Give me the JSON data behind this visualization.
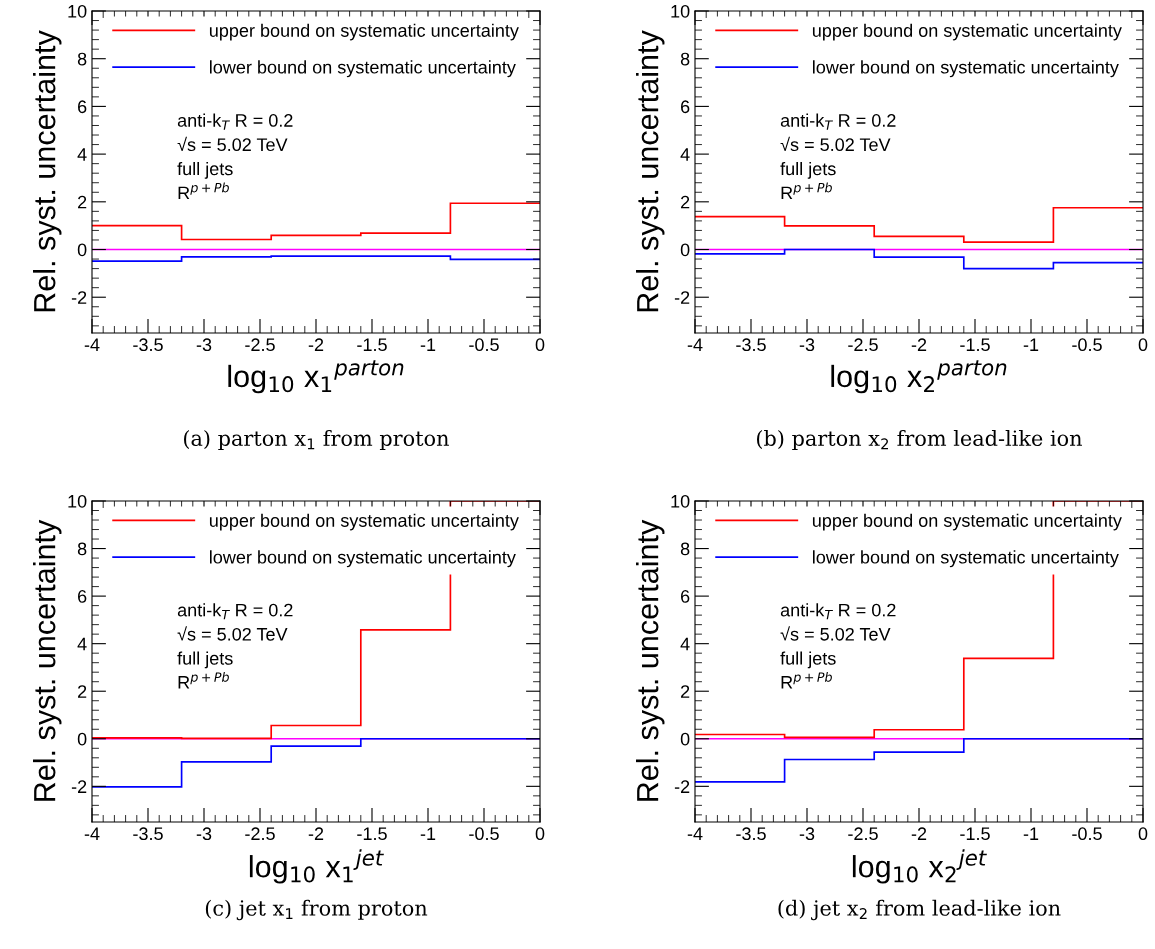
{
  "chart_data": [
    {
      "type": "histogram",
      "title": "(a) parton x$_{1}$ from proton",
      "xlabel": "log$_{10}$ x$_{1}$$^{parton}$",
      "ylabel": "Rel. syst. uncertainty",
      "bins": [
        -4,
        -3.2,
        -2.4,
        -1.6,
        -0.8,
        0
      ],
      "series": [
        {
          "name": "upper bound on systematic uncertainty",
          "color": "#ff0000",
          "values": [
            1.0,
            0.42,
            0.59,
            0.69,
            1.94
          ]
        },
        {
          "name": "lower bound on systematic uncertainty",
          "color": "#0000ff",
          "values": [
            -0.49,
            -0.31,
            -0.28,
            -0.28,
            -0.41
          ]
        }
      ],
      "annotations": [
        "anti-k$_{T}$ R = 0.2",
        "√s = 5.02 TeV",
        "full jets",
        "R$^{p+Pb}$"
      ],
      "ref_lines": [
        {
          "axis": "y",
          "value": 0,
          "color": "#ff00ff"
        }
      ],
      "xlim": [
        -4,
        0
      ],
      "ylim": [
        -3.5,
        10
      ],
      "xticks": [
        -4,
        -3.5,
        -3,
        -2.5,
        -2,
        -1.5,
        -1,
        -0.5,
        0
      ],
      "yticks": [
        -2,
        0,
        2,
        4,
        6,
        8,
        10
      ],
      "legend": "top",
      "grid": false
    },
    {
      "type": "histogram",
      "title": "(b) parton x$_{2}$ from lead-like ion",
      "xlabel": "log$_{10}$ x$_{2}$$^{parton}$",
      "ylabel": "Rel. syst. uncertainty",
      "bins": [
        -4,
        -3.2,
        -2.4,
        -1.6,
        -0.8,
        0
      ],
      "series": [
        {
          "name": "upper bound on systematic uncertainty",
          "color": "#ff0000",
          "values": [
            1.38,
            0.99,
            0.55,
            0.31,
            1.75
          ]
        },
        {
          "name": "lower bound on systematic uncertainty",
          "color": "#0000ff",
          "values": [
            -0.18,
            0,
            -0.32,
            -0.8,
            -0.55
          ]
        }
      ],
      "annotations": [
        "anti-k$_{T}$ R = 0.2",
        "√s = 5.02 TeV",
        "full jets",
        "R$^{p+Pb}$"
      ],
      "ref_lines": [
        {
          "axis": "y",
          "value": 0,
          "color": "#ff00ff"
        }
      ],
      "xlim": [
        -4,
        0
      ],
      "ylim": [
        -3.5,
        10
      ],
      "xticks": [
        -4,
        -3.5,
        -3,
        -2.5,
        -2,
        -1.5,
        -1,
        -0.5,
        0
      ],
      "yticks": [
        -2,
        0,
        2,
        4,
        6,
        8,
        10
      ],
      "legend": "top",
      "grid": false
    },
    {
      "type": "histogram",
      "title": "(c) jet x$_{1}$ from proton",
      "xlabel": "log$_{10}$ x$_{1}$$^{jet}$",
      "ylabel": "Rel. syst. uncertainty",
      "bins": [
        -4,
        -3.2,
        -2.4,
        -1.6,
        -0.8,
        0
      ],
      "series": [
        {
          "name": "upper bound on systematic uncertainty",
          "color": "#ff0000",
          "values": [
            0.04,
            0.02,
            0.56,
            4.58,
            10
          ]
        },
        {
          "name": "lower bound on systematic uncertainty",
          "color": "#0000ff",
          "values": [
            -2.02,
            -0.97,
            -0.31,
            0,
            0
          ]
        }
      ],
      "annotations": [
        "anti-k$_{T}$ R = 0.2",
        "√s = 5.02 TeV",
        "full jets",
        "R$^{p+Pb}$"
      ],
      "ref_lines": [
        {
          "axis": "y",
          "value": 0,
          "color": "#ff00ff"
        }
      ],
      "xlim": [
        -4,
        0
      ],
      "ylim": [
        -3.5,
        10
      ],
      "xticks": [
        -4,
        -3.5,
        -3,
        -2.5,
        -2,
        -1.5,
        -1,
        -0.5,
        0
      ],
      "yticks": [
        -2,
        0,
        2,
        4,
        6,
        8,
        10
      ],
      "legend": "top",
      "grid": false
    },
    {
      "type": "histogram",
      "title": "(d) jet x$_{2}$ from lead-like ion",
      "xlabel": "log$_{10}$ x$_{2}$$^{jet}$",
      "ylabel": "Rel. syst. uncertainty",
      "bins": [
        -4,
        -3.2,
        -2.4,
        -1.6,
        -0.8,
        0
      ],
      "series": [
        {
          "name": "upper bound on systematic uncertainty",
          "color": "#ff0000",
          "values": [
            0.18,
            0.06,
            0.38,
            3.38,
            10
          ]
        },
        {
          "name": "lower bound on systematic uncertainty",
          "color": "#0000ff",
          "values": [
            -1.81,
            -0.87,
            -0.56,
            0,
            0
          ]
        }
      ],
      "annotations": [
        "anti-k$_{T}$ R = 0.2",
        "√s = 5.02 TeV",
        "full jets",
        "R$^{p+Pb}$"
      ],
      "ref_lines": [
        {
          "axis": "y",
          "value": 0,
          "color": "#ff00ff"
        }
      ],
      "xlim": [
        -4,
        0
      ],
      "ylim": [
        -3.5,
        10
      ],
      "xticks": [
        -4,
        -3.5,
        -3,
        -2.5,
        -2,
        -1.5,
        -1,
        -0.5,
        0
      ],
      "yticks": [
        -2,
        0,
        2,
        4,
        6,
        8,
        10
      ],
      "legend": "top",
      "grid": false
    }
  ]
}
